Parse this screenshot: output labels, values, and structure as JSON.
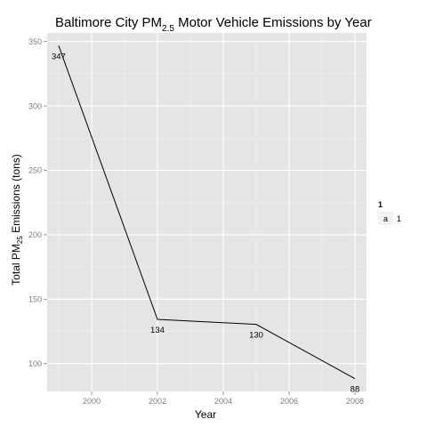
{
  "chart_data": {
    "type": "line",
    "title_main": "Baltimore City PM",
    "title_sub": "2.5",
    "title_rest": " Motor Vehicle Emissions by Year",
    "xlabel": "Year",
    "ylabel_main": "Total PM",
    "ylabel_sub": "25",
    "ylabel_rest": " Emissions (tons)",
    "x": [
      1999,
      2002,
      2005,
      2008
    ],
    "values": [
      346.82,
      134.31,
      130.43,
      88.28
    ],
    "data_labels": [
      "347",
      "134",
      "130",
      "88"
    ],
    "xlim": [
      1998.65,
      2008.35
    ],
    "ylim": [
      78.4,
      356.7
    ],
    "x_ticks": [
      2000,
      2002,
      2004,
      2006,
      2008
    ],
    "x_tick_labels": [
      "2000",
      "2002",
      "2004",
      "2006",
      "2008"
    ],
    "y_ticks": [
      100,
      150,
      200,
      250,
      300,
      350
    ],
    "y_tick_labels": [
      "100",
      "150",
      "200",
      "250",
      "300",
      "350"
    ],
    "grid": true,
    "line_color": "#000000",
    "panel_background": "#e5e5e5",
    "legend": {
      "title": "1",
      "key_label": "a",
      "entry": "1",
      "position": "right"
    }
  }
}
